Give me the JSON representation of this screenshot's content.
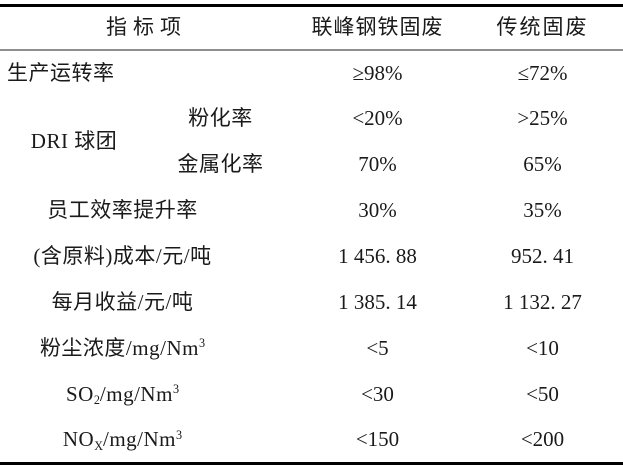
{
  "page": {
    "background": "#ffffff",
    "text_color": "#1a1a1a",
    "rule_heavy_color": "#000000",
    "rule_light_color": "#8f8f8f"
  },
  "table": {
    "header": {
      "indicator": "指标项",
      "lianfeng": "联峰钢铁固废",
      "traditional": "传统固废"
    },
    "rows": [
      {
        "label": "生产运转率",
        "lianfeng": "≥98%",
        "traditional": "≤72%"
      },
      {
        "group": "DRI 球团",
        "label": "粉化率",
        "lianfeng": "<20%",
        "traditional": ">25%"
      },
      {
        "label": "金属化率",
        "lianfeng": "70%",
        "traditional": "65%"
      },
      {
        "label": "员工效率提升率",
        "lianfeng": "30%",
        "traditional": "35%"
      },
      {
        "label": "(含原料)成本/元/吨",
        "lianfeng": "1 456. 88",
        "traditional": "952. 41"
      },
      {
        "label": "每月收益/元/吨",
        "lianfeng": "1 385. 14",
        "traditional": "1 132. 27"
      },
      {
        "label_parts": [
          {
            "t": "粉尘浓度/mg/Nm"
          },
          {
            "t": "3",
            "s": "sup"
          }
        ],
        "lianfeng": "<5",
        "traditional": "<10"
      },
      {
        "label_parts": [
          {
            "t": "SO"
          },
          {
            "t": "2",
            "s": "sub"
          },
          {
            "t": "/mg/Nm"
          },
          {
            "t": "3",
            "s": "sup"
          }
        ],
        "lianfeng": "<30",
        "traditional": "<50"
      },
      {
        "label_parts": [
          {
            "t": "NO"
          },
          {
            "t": "X",
            "s": "sub"
          },
          {
            "t": "/mg/Nm"
          },
          {
            "t": "3",
            "s": "sup"
          }
        ],
        "lianfeng": "<150",
        "traditional": "<200"
      }
    ]
  }
}
